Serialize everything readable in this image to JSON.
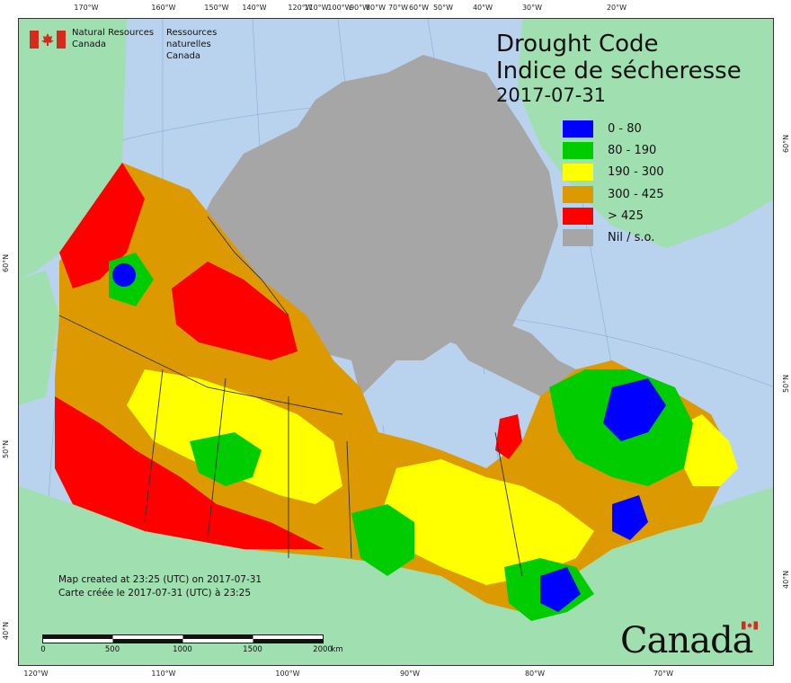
{
  "agency": {
    "name_en_line1": "Natural Resources",
    "name_en_line2": "Canada",
    "name_fr_line1": "Ressources naturelles",
    "name_fr_line2": "Canada"
  },
  "title": {
    "line1": "Drought Code",
    "line2": "Indice de sécheresse",
    "date": "2017-07-31"
  },
  "legend": [
    {
      "label": "0 - 80",
      "color": "#0000ff"
    },
    {
      "label": "80 - 190",
      "color": "#00cc00"
    },
    {
      "label": "190 - 300",
      "color": "#ffff00"
    },
    {
      "label": "300 - 425",
      "color": "#dd9900"
    },
    {
      "label": "> 425",
      "color": "#ff0000"
    },
    {
      "label": "Nil / s.o.",
      "color": "#a6a6a6"
    }
  ],
  "credit": {
    "line1": "Map created at 23:25 (UTC) on 2017-07-31",
    "line2": "Carte créée le 2017-07-31 (UTC) à 23:25"
  },
  "scale": {
    "labels": [
      "0",
      "500",
      "1000",
      "1500",
      "2000"
    ],
    "unit": "km"
  },
  "graticule": {
    "top": [
      "170°W",
      "160°W",
      "150°W",
      "140°W",
      "120°W",
      "110°W",
      "100°W",
      "90°W",
      "80°W",
      "70°W",
      "60°W",
      "50°W",
      "40°W",
      "30°W",
      "20°W"
    ],
    "bottom": [
      "120°W",
      "110°W",
      "100°W",
      "90°W",
      "80°W",
      "70°W"
    ],
    "left": [
      "60°N",
      "50°N",
      "40°N"
    ],
    "right": [
      "60°N",
      "50°N",
      "40°N"
    ]
  },
  "wordmark": "Canada",
  "colors": {
    "water": "#b9d3ee",
    "land_outside": "#9fdfb0",
    "nil": "#a6a6a6",
    "boundary": "#333333"
  }
}
